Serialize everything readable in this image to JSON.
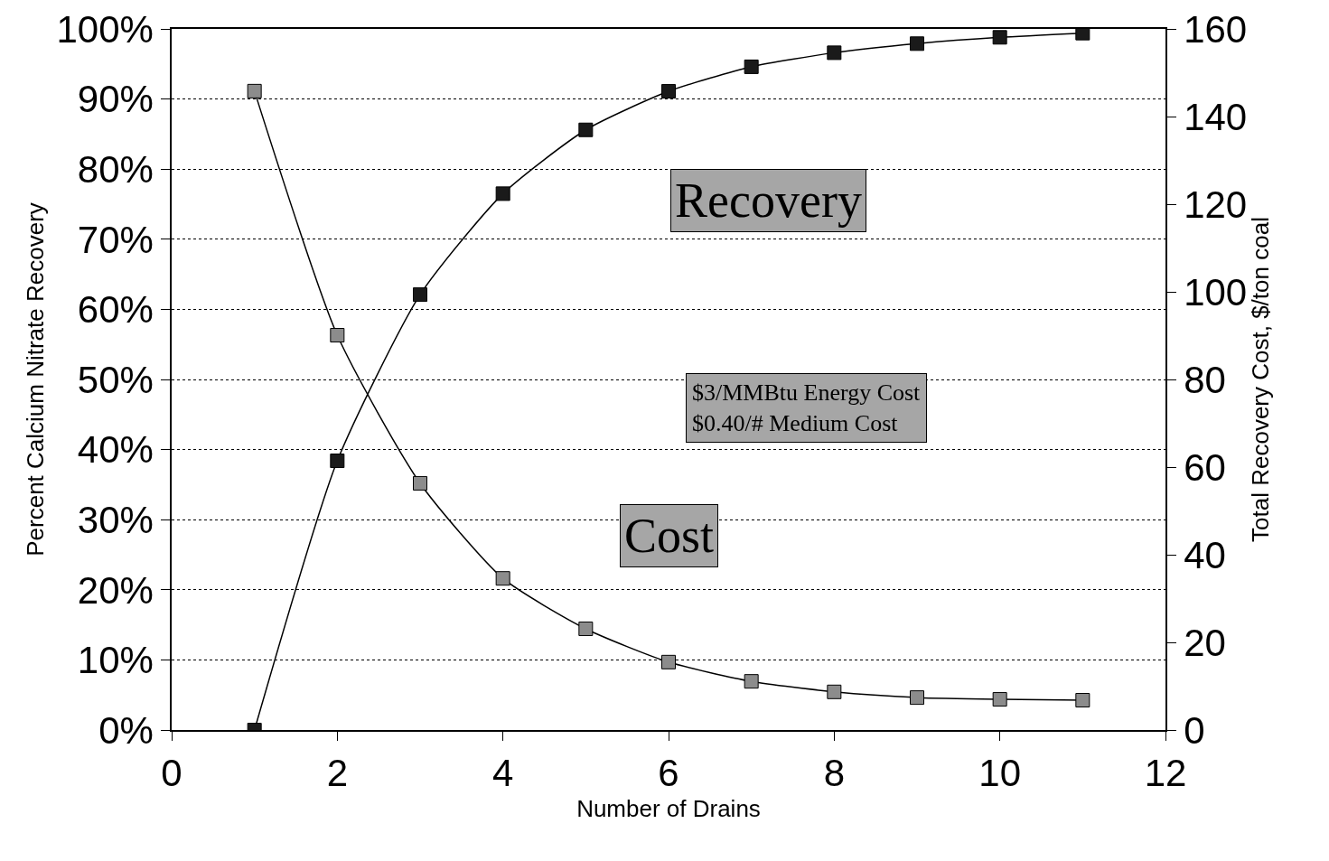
{
  "chart_data": {
    "type": "line",
    "xlabel": "Number of Drains",
    "ylabel": "Percent Calcium Nitrate Recovery",
    "y2label": "Total Recovery Cost, $/ton coal",
    "x": [
      1,
      2,
      3,
      4,
      5,
      6,
      7,
      8,
      9,
      10,
      11
    ],
    "series": [
      {
        "name": "Recovery",
        "color": "#1a1a1a",
        "values": [
          0,
          38.4,
          62.1,
          76.5,
          85.6,
          91.1,
          94.6,
          96.6,
          97.9,
          98.8,
          99.4
        ]
      },
      {
        "name": "Cost",
        "color": "#8c8c8c",
        "axis": "y2",
        "values": [
          145.8,
          90.1,
          56.3,
          34.6,
          23.1,
          15.5,
          11.1,
          8.7,
          7.4,
          7.0,
          6.8
        ]
      }
    ],
    "xlim": [
      0,
      12
    ],
    "xticks": [
      0,
      2,
      4,
      6,
      8,
      10,
      12
    ],
    "ylim": [
      0,
      100
    ],
    "yticks": [
      {
        "value": 0,
        "label": "0%"
      },
      {
        "value": 10,
        "label": "10%"
      },
      {
        "value": 20,
        "label": "20%"
      },
      {
        "value": 30,
        "label": "30%"
      },
      {
        "value": 40,
        "label": "40%"
      },
      {
        "value": 50,
        "label": "50%"
      },
      {
        "value": 60,
        "label": "60%"
      },
      {
        "value": 70,
        "label": "70%"
      },
      {
        "value": 80,
        "label": "80%"
      },
      {
        "value": 90,
        "label": "90%"
      },
      {
        "value": 100,
        "label": "100%"
      }
    ],
    "y2lim": [
      0,
      160
    ],
    "y2ticks": [
      0,
      20,
      40,
      60,
      80,
      100,
      120,
      140,
      160
    ],
    "annotations": [
      "$3/MMBtu Energy Cost\n$0.40/# Medium Cost"
    ],
    "grid": "y",
    "legend": false,
    "marker": "square",
    "line_style": "solid"
  }
}
